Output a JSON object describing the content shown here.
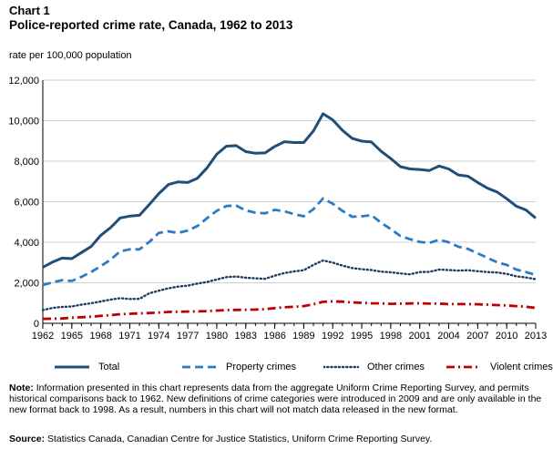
{
  "chart_data": {
    "type": "line",
    "label": "Chart 1",
    "title": "Police-reported crime rate, Canada, 1962 to 2013",
    "ylabel": "rate per 100,000 population",
    "xlabel": "",
    "ylim": [
      0,
      12000
    ],
    "yticks": [
      "0",
      "2,000",
      "4,000",
      "6,000",
      "8,000",
      "10,000",
      "12,000"
    ],
    "ytick_values": [
      0,
      2000,
      4000,
      6000,
      8000,
      10000,
      12000
    ],
    "xticks": [
      "1962",
      "1965",
      "1968",
      "1971",
      "1974",
      "1977",
      "1980",
      "1983",
      "1986",
      "1989",
      "1992",
      "1995",
      "1998",
      "2001",
      "2004",
      "2007",
      "2010",
      "2013"
    ],
    "xtick_values": [
      1962,
      1965,
      1968,
      1971,
      1974,
      1977,
      1980,
      1983,
      1986,
      1989,
      1992,
      1995,
      1998,
      2001,
      2004,
      2007,
      2010,
      2013
    ],
    "grid": true,
    "legend_position": "bottom",
    "x": [
      1962,
      1963,
      1964,
      1965,
      1966,
      1967,
      1968,
      1969,
      1970,
      1971,
      1972,
      1973,
      1974,
      1975,
      1976,
      1977,
      1978,
      1979,
      1980,
      1981,
      1982,
      1983,
      1984,
      1985,
      1986,
      1987,
      1988,
      1989,
      1990,
      1991,
      1992,
      1993,
      1994,
      1995,
      1996,
      1997,
      1998,
      1999,
      2000,
      2001,
      2002,
      2003,
      2004,
      2005,
      2006,
      2007,
      2008,
      2009,
      2010,
      2011,
      2012,
      2013
    ],
    "series": [
      {
        "name": "Total",
        "color": "#1f4e79",
        "style": "solid",
        "values": [
          2770,
          3020,
          3220,
          3190,
          3490,
          3790,
          4340,
          4720,
          5200,
          5290,
          5330,
          5850,
          6400,
          6850,
          6980,
          6950,
          7160,
          7670,
          8340,
          8740,
          8770,
          8470,
          8390,
          8410,
          8730,
          8960,
          8920,
          8920,
          9490,
          10340,
          10040,
          9530,
          9130,
          8990,
          8950,
          8490,
          8130,
          7730,
          7620,
          7590,
          7540,
          7760,
          7620,
          7320,
          7260,
          6950,
          6670,
          6480,
          6150,
          5780,
          5590,
          5190
        ]
      },
      {
        "name": "Property crimes",
        "color": "#2e7bc4",
        "style": "dashed",
        "values": [
          1890,
          2020,
          2130,
          2090,
          2290,
          2530,
          2820,
          3140,
          3550,
          3650,
          3650,
          4010,
          4460,
          4540,
          4460,
          4580,
          4800,
          5190,
          5550,
          5790,
          5810,
          5570,
          5460,
          5430,
          5600,
          5530,
          5390,
          5280,
          5630,
          6160,
          5900,
          5550,
          5260,
          5280,
          5340,
          4960,
          4650,
          4310,
          4150,
          4020,
          3970,
          4120,
          4000,
          3780,
          3670,
          3450,
          3230,
          3010,
          2880,
          2650,
          2530,
          2380
        ]
      },
      {
        "name": "Other crimes",
        "color": "#1f3a5f",
        "style": "dotted",
        "values": [
          650,
          760,
          810,
          830,
          920,
          990,
          1080,
          1170,
          1240,
          1200,
          1210,
          1480,
          1610,
          1730,
          1810,
          1860,
          1960,
          2040,
          2160,
          2280,
          2310,
          2250,
          2220,
          2200,
          2350,
          2480,
          2560,
          2620,
          2880,
          3100,
          3000,
          2850,
          2730,
          2670,
          2630,
          2550,
          2520,
          2460,
          2420,
          2530,
          2540,
          2650,
          2630,
          2600,
          2620,
          2570,
          2530,
          2510,
          2440,
          2320,
          2260,
          2180
        ]
      },
      {
        "name": "Violent crimes",
        "color": "#c00000",
        "style": "dashdot",
        "values": [
          220,
          230,
          240,
          280,
          300,
          330,
          370,
          400,
          450,
          470,
          490,
          510,
          530,
          560,
          570,
          580,
          590,
          600,
          630,
          650,
          660,
          670,
          680,
          700,
          750,
          790,
          820,
          850,
          940,
          1060,
          1080,
          1070,
          1030,
          1010,
          990,
          980,
          960,
          970,
          980,
          990,
          970,
          970,
          950,
          950,
          950,
          940,
          920,
          900,
          880,
          850,
          820,
          760
        ]
      }
    ]
  },
  "note": {
    "label": "Note:",
    "text": " Information presented in this chart represents data from the aggregate Uniform Crime Reporting Survey, and permits historical comparisons back to 1962. New definitions of crime categories were introduced in 2009 and are only available in the new format back to 1998. As a result, numbers in this chart will not match data released in the new format."
  },
  "source": {
    "label": "Source:",
    "text": " Statistics Canada, Canadian Centre for Justice Statistics, Uniform Crime Reporting Survey."
  }
}
